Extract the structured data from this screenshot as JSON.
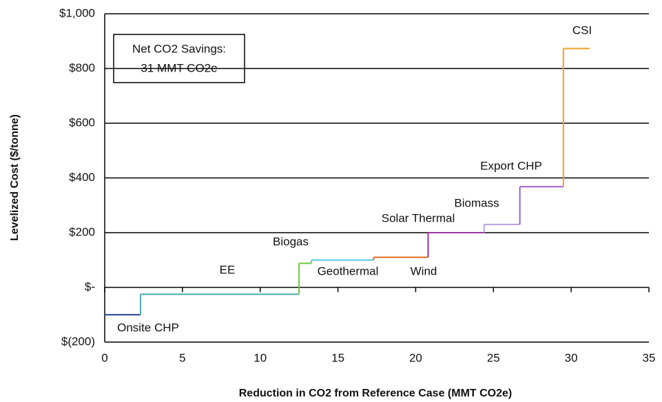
{
  "chart_data": {
    "type": "step",
    "x_label": "Reduction in CO2 from Reference Case (MMT CO2e)",
    "y_label": "Levelized Cost ($/tonne)",
    "annotation": [
      "Net CO2 Savings:",
      "31 MMT CO2e"
    ],
    "categories": [
      "Onsite CHP",
      "EE",
      "Biogas",
      "Geothermal",
      "Wind",
      "Solar Thermal",
      "Biomass",
      "Export CHP",
      "CSI"
    ],
    "values": [
      -100,
      -25,
      88,
      100,
      110,
      200,
      230,
      368,
      873
    ],
    "widths": [
      2.3,
      10.2,
      0.8,
      4,
      3.5,
      3.6,
      2.3,
      2.8,
      1.7
    ],
    "colors": [
      "#1f3f8f",
      "#4aa8a8",
      "#66cc33",
      "#55c8e0",
      "#e06a1a",
      "#a030a0",
      "#b9a0e0",
      "#9a5fc8",
      "#f0a020"
    ],
    "xlim": [
      0,
      35
    ],
    "xticks": [
      0,
      5,
      10,
      15,
      20,
      25,
      30,
      35
    ],
    "ylim": [
      -200,
      1000
    ],
    "yticks": [
      {
        "value": -200,
        "label": "$(200)"
      },
      {
        "value": 0,
        "label": "$-"
      },
      {
        "value": 200,
        "label": "$200"
      },
      {
        "value": 400,
        "label": "$400"
      },
      {
        "value": 600,
        "label": "$600"
      },
      {
        "value": 800,
        "label": "$800"
      },
      {
        "value": 1000,
        "label": "$1,000"
      }
    ],
    "grid": true
  }
}
